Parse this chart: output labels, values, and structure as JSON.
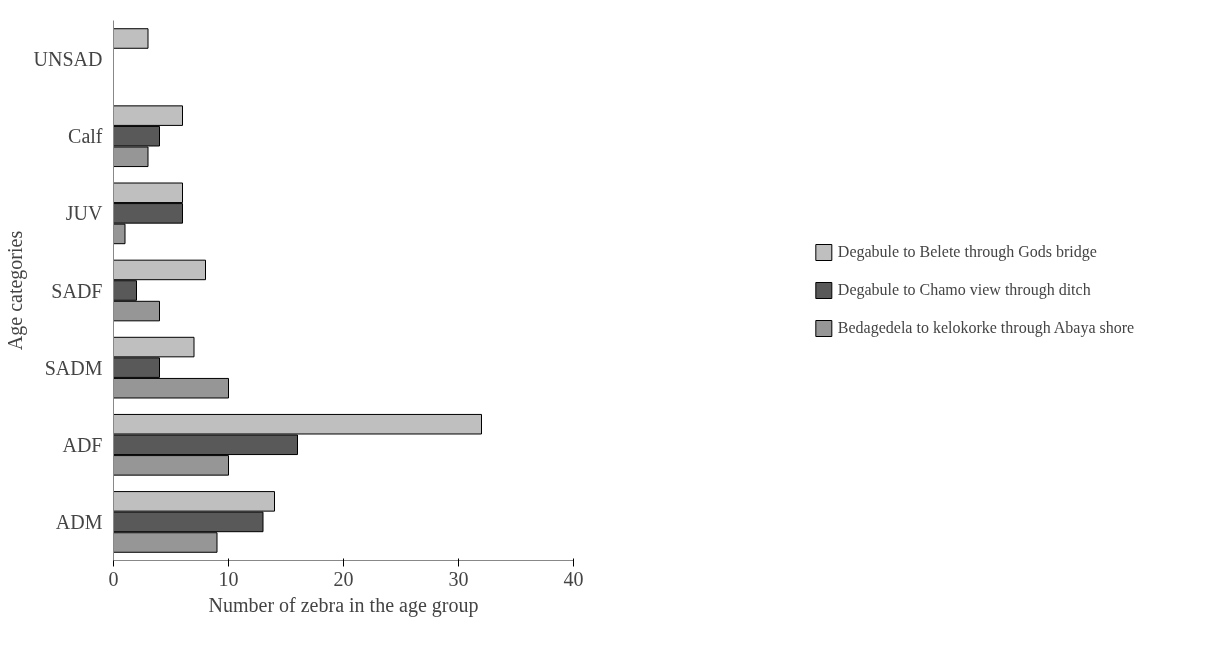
{
  "chart_data": {
    "type": "bar",
    "orientation": "horizontal",
    "xlabel": "Number of zebra in the age group",
    "ylabel": "Age categories",
    "categories": [
      "UNSAD",
      "Calf",
      "JUV",
      "SADF",
      "SADM",
      "ADF",
      "ADM"
    ],
    "series": [
      {
        "name": "Degabule to Belete through Gods bridge",
        "color": "#bfbfbf",
        "values": [
          3,
          6,
          6,
          8,
          7,
          32,
          14
        ]
      },
      {
        "name": "Degabule to Chamo view through ditch",
        "color": "#595959",
        "values": [
          null,
          4,
          6,
          2,
          4,
          16,
          13
        ]
      },
      {
        "name": "Bedagedela to kelokorke through Abaya shore",
        "color": "#969696",
        "values": [
          null,
          3,
          1,
          4,
          10,
          10,
          9
        ]
      }
    ],
    "xlim": [
      0,
      40
    ],
    "xticks": [
      0,
      10,
      20,
      30,
      40
    ],
    "grid": false,
    "legend": "right"
  }
}
